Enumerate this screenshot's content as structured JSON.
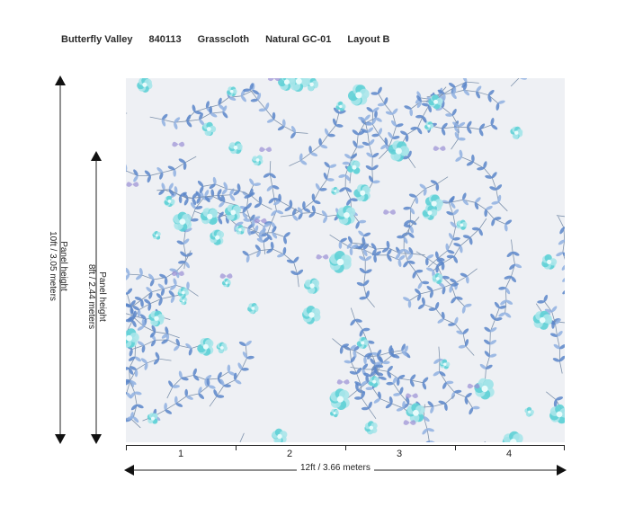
{
  "header": {
    "pattern_name": "Butterfly Valley",
    "sku": "840113",
    "material": "Grasscloth",
    "color": "Natural GC-01",
    "layout": "Layout B"
  },
  "dimensions": {
    "outer_height_line1": "Panel height",
    "outer_height_line2": "10ft / 3.05 meters",
    "inner_height_line1": "Panel height",
    "inner_height_line2": "8ft / 2.44 meters",
    "width_label": "12ft  / 3.66 meters"
  },
  "panels": [
    "1",
    "2",
    "3",
    "4"
  ],
  "colors": {
    "background": "#eef0f4",
    "leaf_blue": "#5b86c9",
    "leaf_light": "#8fb0e0",
    "flower_teal": "#5ed0d6",
    "flower_light": "#a9e6ea",
    "stem": "#7f93ad",
    "butterfly": "#9a8fd4"
  }
}
